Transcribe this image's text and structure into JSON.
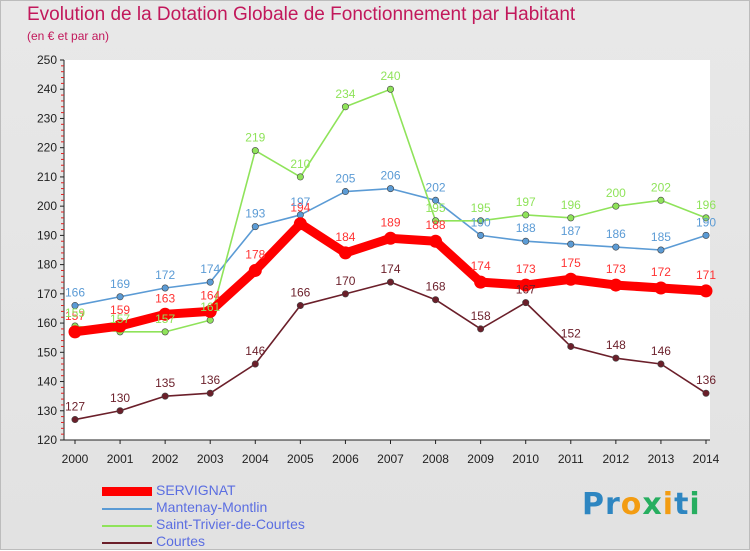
{
  "header": {
    "title": "Evolution de la Dotation Globale de Fonctionnement par Habitant",
    "subtitle": "(en € et par an)"
  },
  "logo": {
    "text": "Proxiti",
    "letters": [
      {
        "ch": "P",
        "color": "#2e86c1"
      },
      {
        "ch": "r",
        "color": "#2e86c1"
      },
      {
        "ch": "o",
        "color": "#f39c12"
      },
      {
        "ch": "x",
        "color": "#27ae60"
      },
      {
        "ch": "i",
        "color": "#f39c12"
      },
      {
        "ch": "t",
        "color": "#2e86c1"
      },
      {
        "ch": "i",
        "color": "#27ae60"
      }
    ]
  },
  "chart_data": {
    "type": "line",
    "title": "Evolution de la Dotation Globale de Fonctionnement par Habitant",
    "subtitle": "(en € et par an)",
    "xlabel": "",
    "ylabel": "",
    "ylim": [
      120,
      250
    ],
    "y_ticks": [
      120,
      130,
      140,
      150,
      160,
      170,
      180,
      190,
      200,
      210,
      220,
      230,
      240,
      250
    ],
    "grid": false,
    "legend_position": "bottom-left",
    "x": [
      "2000",
      "2001",
      "2002",
      "2003",
      "2004",
      "2005",
      "2006",
      "2007",
      "2008",
      "2009",
      "2010",
      "2011",
      "2012",
      "2013",
      "2014"
    ],
    "series": [
      {
        "name": "SERVIGNAT",
        "color": "#ff0000",
        "label_color": "#ff3333",
        "emphasis": true,
        "values": [
          157,
          159,
          163,
          164,
          178,
          194,
          184,
          189,
          188,
          174,
          173,
          175,
          173,
          172,
          171
        ]
      },
      {
        "name": "Mantenay-Montlin",
        "color": "#5b9bd5",
        "label_color": "#5b9bd5",
        "emphasis": false,
        "values": [
          166,
          169,
          172,
          174,
          193,
          197,
          205,
          206,
          202,
          190,
          188,
          187,
          186,
          185,
          190
        ]
      },
      {
        "name": "Saint-Trivier-de-Courtes",
        "color": "#8fe35a",
        "label_color": "#8fe35a",
        "emphasis": false,
        "values": [
          159,
          157,
          157,
          161,
          219,
          210,
          234,
          240,
          195,
          195,
          197,
          196,
          200,
          202,
          196
        ]
      },
      {
        "name": "Courtes",
        "color": "#6b1f2a",
        "label_color": "#6b1f2a",
        "emphasis": false,
        "values": [
          127,
          130,
          135,
          136,
          146,
          166,
          170,
          174,
          168,
          158,
          167,
          152,
          148,
          146,
          136
        ]
      }
    ]
  }
}
